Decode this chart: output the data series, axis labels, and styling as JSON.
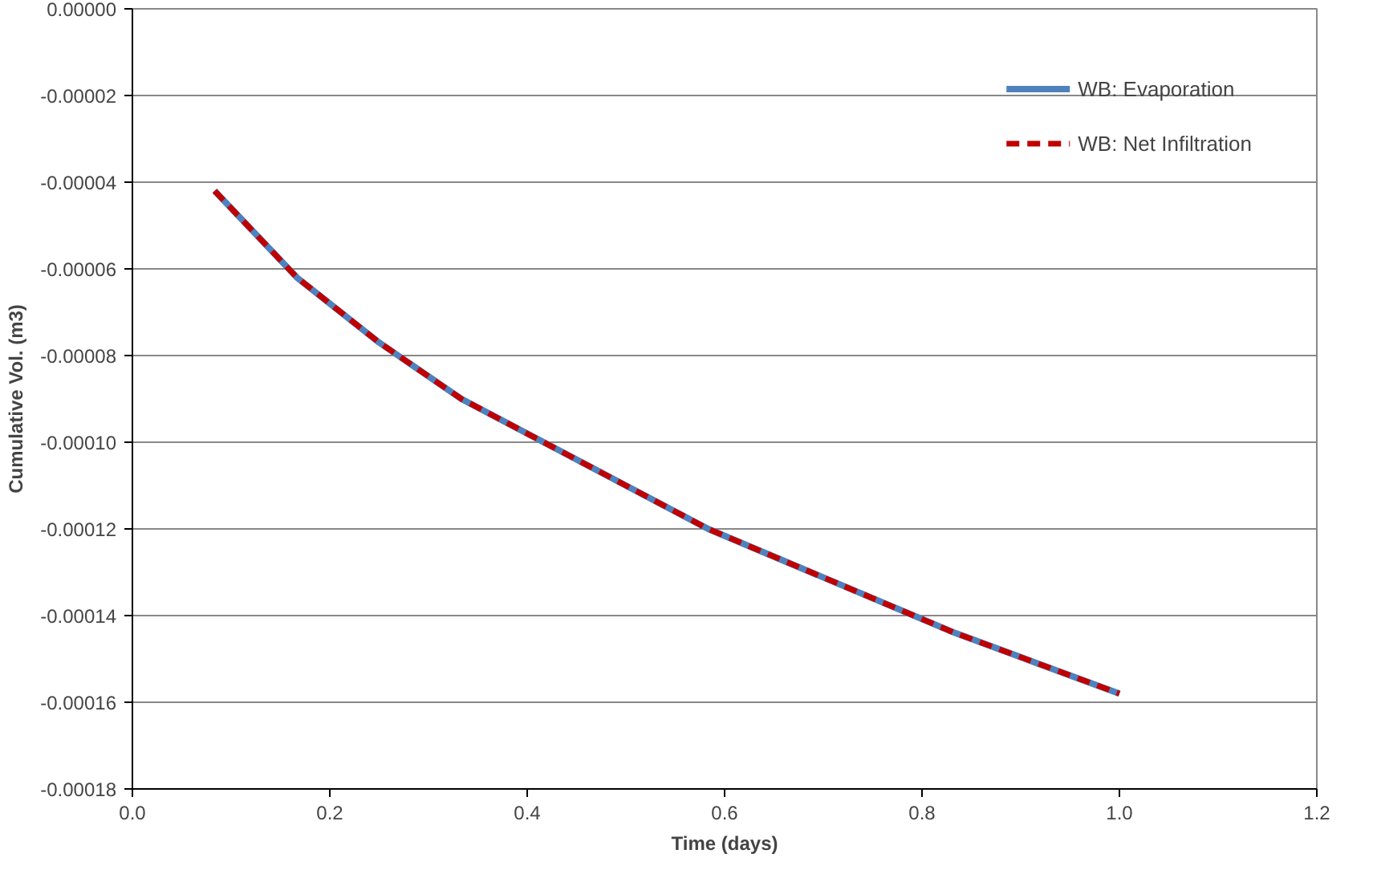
{
  "chart_data": {
    "type": "line",
    "xlabel": "Time (days)",
    "ylabel": "Cumulative Vol. (m3)",
    "xlim": [
      0,
      1.2
    ],
    "ylim": [
      -0.00018,
      0
    ],
    "xticks": [
      {
        "value": 0,
        "label": "0.0"
      },
      {
        "value": 0.2,
        "label": "0.2"
      },
      {
        "value": 0.4,
        "label": "0.4"
      },
      {
        "value": 0.6,
        "label": "0.6"
      },
      {
        "value": 0.8,
        "label": "0.8"
      },
      {
        "value": 1.0,
        "label": "1.0"
      },
      {
        "value": 1.2,
        "label": "1.2"
      }
    ],
    "yticks": [
      {
        "value": -0.00018,
        "label": "-0.00018"
      },
      {
        "value": -0.00016,
        "label": "-0.00016"
      },
      {
        "value": -0.00014,
        "label": "-0.00014"
      },
      {
        "value": -0.00012,
        "label": "-0.00012"
      },
      {
        "value": -0.0001,
        "label": "-0.00010"
      },
      {
        "value": -8e-05,
        "label": "-0.00008"
      },
      {
        "value": -6e-05,
        "label": "-0.00006"
      },
      {
        "value": -4e-05,
        "label": "-0.00004"
      },
      {
        "value": -2e-05,
        "label": "-0.00002"
      },
      {
        "value": 0,
        "label": "0.00000"
      }
    ],
    "x": [
      0.0833,
      0.1667,
      0.25,
      0.3333,
      0.4167,
      0.5,
      0.5833,
      0.6667,
      0.75,
      0.8333,
      0.9167,
      1.0
    ],
    "grid": "y",
    "legend": "top right",
    "marker": "none",
    "series": [
      {
        "name": "WB: Evaporation",
        "color": "#4f81bd",
        "line_style": "solid",
        "values": [
          -4.2e-05,
          -6.2e-05,
          -7.7e-05,
          -9e-05,
          -0.0001,
          -0.00011,
          -0.00012,
          -0.000128,
          -0.000136,
          -0.000144,
          -0.000151,
          -0.000158
        ]
      },
      {
        "name": "WB: Net Infiltration",
        "color": "#c00000",
        "line_style": "dashed",
        "values": [
          -4.2e-05,
          -6.2e-05,
          -7.7e-05,
          -9e-05,
          -0.0001,
          -0.00011,
          -0.00012,
          -0.000128,
          -0.000136,
          -0.000144,
          -0.000151,
          -0.000158
        ]
      }
    ]
  }
}
